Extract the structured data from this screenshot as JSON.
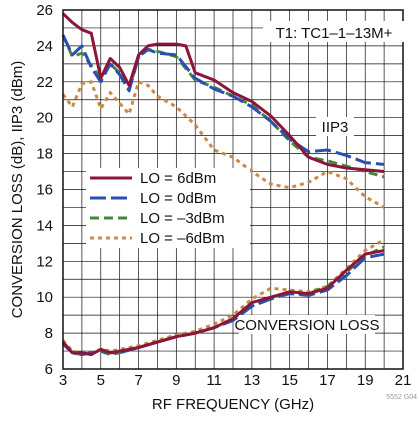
{
  "chart_data": {
    "type": "line",
    "xlabel": "RF FREQUENCY (GHz)",
    "ylabel": "CONVERSION LOSS (dB), IIP3 (dBm)",
    "xlim": [
      3,
      20
    ],
    "ylim": [
      6,
      26
    ],
    "x_ticks": [
      "3",
      "5",
      "7",
      "9",
      "11",
      "13",
      "15",
      "17",
      "19",
      "21"
    ],
    "y_ticks": [
      "6",
      "8",
      "10",
      "12",
      "14",
      "16",
      "18",
      "20",
      "22",
      "24",
      "26"
    ],
    "grid": true,
    "legend_position": "left",
    "annotations": {
      "part": "T1: TC1–1–13M+",
      "iip3": "IIP3",
      "loss": "CONVERSION LOSS",
      "figure_id": "5552 G04"
    },
    "series": [
      {
        "name": "LO = 6dBm",
        "color": "#8c1538",
        "dash": "solid",
        "iip3": [
          [
            3,
            25.8
          ],
          [
            3.5,
            25.3
          ],
          [
            4,
            24.9
          ],
          [
            4.5,
            24.7
          ],
          [
            5,
            22.2
          ],
          [
            5.5,
            23.3
          ],
          [
            6,
            22.8
          ],
          [
            6.5,
            21.8
          ],
          [
            7,
            23.5
          ],
          [
            7.5,
            24.0
          ],
          [
            8,
            24.1
          ],
          [
            9,
            24.1
          ],
          [
            9.5,
            24.0
          ],
          [
            10,
            22.5
          ],
          [
            11,
            22.1
          ],
          [
            12,
            21.4
          ],
          [
            13,
            20.9
          ],
          [
            14,
            20.1
          ],
          [
            15,
            19.0
          ],
          [
            16,
            17.8
          ],
          [
            17,
            17.4
          ],
          [
            18,
            17.2
          ],
          [
            19,
            17.1
          ],
          [
            20,
            17.0
          ]
        ],
        "loss": [
          [
            3,
            7.5
          ],
          [
            3.5,
            6.9
          ],
          [
            4,
            6.9
          ],
          [
            4.5,
            6.8
          ],
          [
            5,
            7.1
          ],
          [
            5.5,
            6.9
          ],
          [
            6,
            7.0
          ],
          [
            7,
            7.2
          ],
          [
            8,
            7.5
          ],
          [
            9,
            7.8
          ],
          [
            10,
            8.0
          ],
          [
            11,
            8.3
          ],
          [
            12,
            8.8
          ],
          [
            13,
            9.7
          ],
          [
            14,
            10.0
          ],
          [
            15,
            10.3
          ],
          [
            16,
            10.2
          ],
          [
            17,
            10.5
          ],
          [
            18,
            11.5
          ],
          [
            19,
            12.4
          ],
          [
            20,
            12.6
          ]
        ]
      },
      {
        "name": "LO = 0dBm",
        "color": "#2a4fb0",
        "dash": "long",
        "iip3": [
          [
            3,
            24.6
          ],
          [
            3.5,
            23.5
          ],
          [
            4,
            24.0
          ],
          [
            4.5,
            22.8
          ],
          [
            5,
            22.0
          ],
          [
            5.5,
            23.0
          ],
          [
            6,
            22.4
          ],
          [
            6.5,
            21.5
          ],
          [
            7,
            23.4
          ],
          [
            7.5,
            23.8
          ],
          [
            8,
            23.6
          ],
          [
            9,
            23.5
          ],
          [
            10,
            22.2
          ],
          [
            11,
            21.6
          ],
          [
            12,
            21.2
          ],
          [
            13,
            20.6
          ],
          [
            14,
            19.8
          ],
          [
            15,
            18.8
          ],
          [
            16,
            18.1
          ],
          [
            17,
            18.2
          ],
          [
            18,
            17.9
          ],
          [
            19,
            17.5
          ],
          [
            20,
            17.4
          ]
        ],
        "loss": [
          [
            3,
            7.4
          ],
          [
            3.5,
            6.9
          ],
          [
            4,
            6.8
          ],
          [
            4.5,
            6.9
          ],
          [
            5,
            7.0
          ],
          [
            5.5,
            6.9
          ],
          [
            6,
            6.9
          ],
          [
            7,
            7.2
          ],
          [
            8,
            7.5
          ],
          [
            9,
            7.8
          ],
          [
            10,
            8.0
          ],
          [
            11,
            8.3
          ],
          [
            12,
            8.7
          ],
          [
            13,
            9.5
          ],
          [
            14,
            9.9
          ],
          [
            15,
            10.2
          ],
          [
            16,
            10.1
          ],
          [
            17,
            10.4
          ],
          [
            18,
            11.2
          ],
          [
            19,
            12.2
          ],
          [
            20,
            12.4
          ]
        ]
      },
      {
        "name": "LO = –3dBm",
        "color": "#3e8a3a",
        "dash": "medium",
        "iip3": [
          [
            3,
            24.6
          ],
          [
            3.5,
            23.4
          ],
          [
            4,
            23.6
          ],
          [
            4.5,
            22.9
          ],
          [
            5,
            22.2
          ],
          [
            5.5,
            23.0
          ],
          [
            6,
            22.5
          ],
          [
            6.5,
            21.6
          ],
          [
            7,
            23.4
          ],
          [
            7.5,
            23.8
          ],
          [
            8,
            23.7
          ],
          [
            9,
            23.4
          ],
          [
            10,
            22.1
          ],
          [
            11,
            21.7
          ],
          [
            12,
            21.2
          ],
          [
            13,
            20.7
          ],
          [
            14,
            19.8
          ],
          [
            15,
            18.7
          ],
          [
            16,
            17.8
          ],
          [
            17,
            17.6
          ],
          [
            18,
            17.3
          ],
          [
            19,
            17.0
          ],
          [
            20,
            16.7
          ]
        ],
        "loss": [
          [
            3,
            7.4
          ],
          [
            3.5,
            6.9
          ],
          [
            4,
            6.8
          ],
          [
            4.5,
            6.9
          ],
          [
            5,
            7.0
          ],
          [
            5.5,
            6.8
          ],
          [
            6,
            6.9
          ],
          [
            7,
            7.2
          ],
          [
            8,
            7.5
          ],
          [
            9,
            7.8
          ],
          [
            10,
            8.0
          ],
          [
            11,
            8.3
          ],
          [
            12,
            8.8
          ],
          [
            13,
            9.6
          ],
          [
            14,
            10.0
          ],
          [
            15,
            10.2
          ],
          [
            16,
            10.2
          ],
          [
            17,
            10.6
          ],
          [
            18,
            11.4
          ],
          [
            19,
            12.3
          ],
          [
            20,
            12.8
          ]
        ]
      },
      {
        "name": "LO = –6dBm",
        "color": "#c98a48",
        "dash": "short",
        "iip3": [
          [
            3,
            21.3
          ],
          [
            3.5,
            20.6
          ],
          [
            4,
            21.9
          ],
          [
            4.5,
            22.0
          ],
          [
            5,
            20.5
          ],
          [
            5.5,
            21.4
          ],
          [
            6,
            20.8
          ],
          [
            6.5,
            20.2
          ],
          [
            7,
            22.0
          ],
          [
            7.5,
            21.8
          ],
          [
            8,
            21.2
          ],
          [
            9,
            20.6
          ],
          [
            10,
            19.6
          ],
          [
            11,
            18.2
          ],
          [
            12,
            17.8
          ],
          [
            13,
            17.0
          ],
          [
            14,
            16.3
          ],
          [
            15,
            16.1
          ],
          [
            16,
            16.4
          ],
          [
            17,
            17.0
          ],
          [
            18,
            16.6
          ],
          [
            19,
            15.6
          ],
          [
            20,
            15.0
          ]
        ],
        "loss": [
          [
            3,
            7.6
          ],
          [
            3.5,
            7.0
          ],
          [
            4,
            6.9
          ],
          [
            4.5,
            6.9
          ],
          [
            5,
            7.1
          ],
          [
            5.5,
            7.0
          ],
          [
            6,
            7.1
          ],
          [
            7,
            7.3
          ],
          [
            8,
            7.6
          ],
          [
            9,
            7.9
          ],
          [
            10,
            8.1
          ],
          [
            11,
            8.5
          ],
          [
            12,
            9.0
          ],
          [
            13,
            9.9
          ],
          [
            14,
            10.5
          ],
          [
            15,
            10.4
          ],
          [
            16,
            10.3
          ],
          [
            17,
            10.6
          ],
          [
            18,
            11.6
          ],
          [
            19,
            12.6
          ],
          [
            20,
            13.2
          ]
        ]
      }
    ]
  }
}
